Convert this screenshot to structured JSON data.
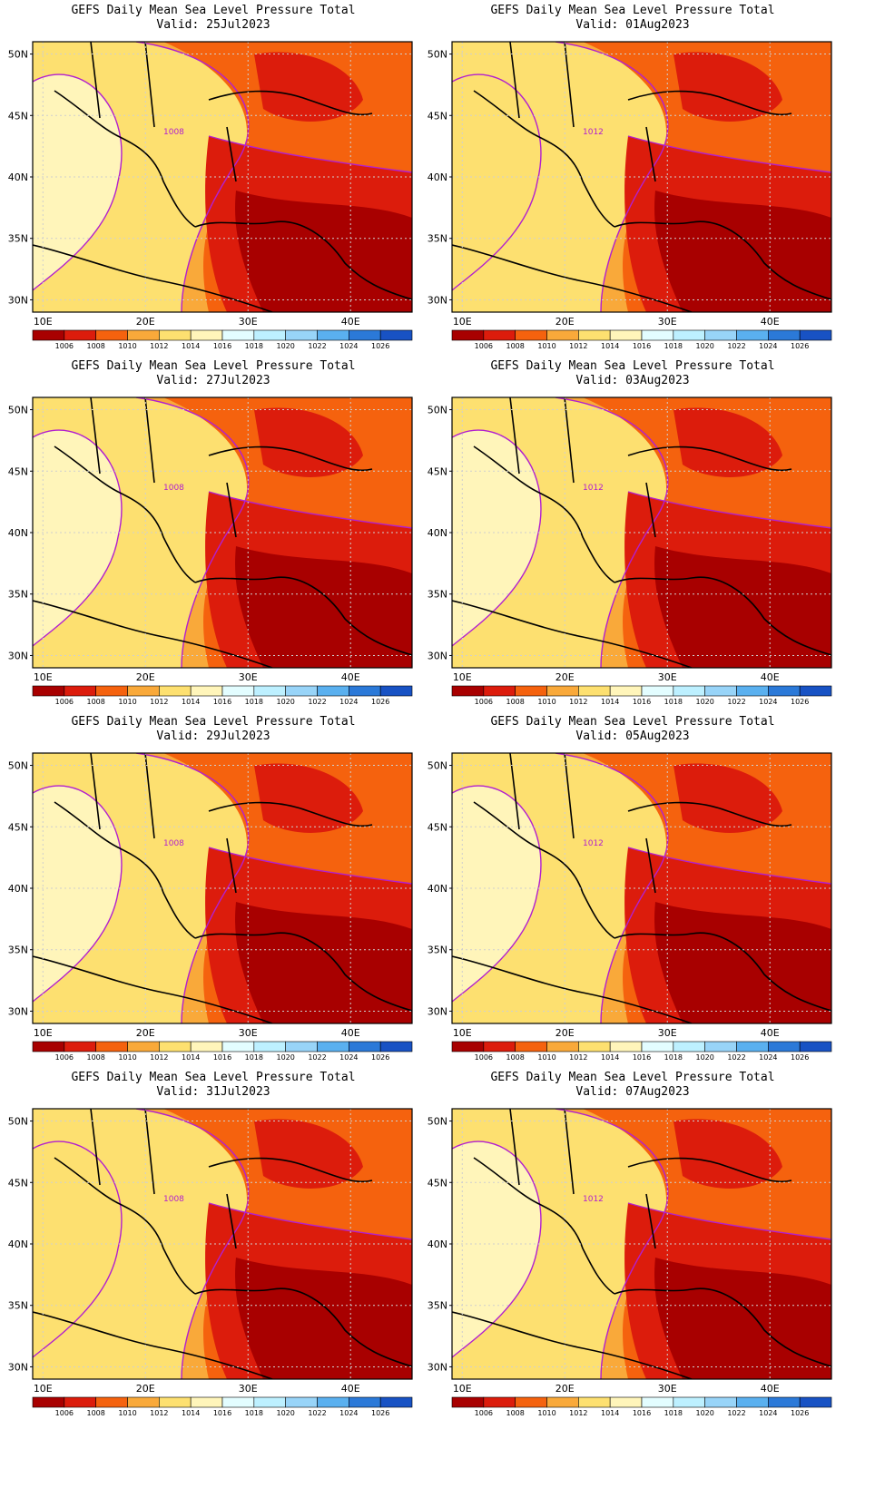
{
  "title_line1": "GEFS Daily Mean Sea Level Pressure Total",
  "valid_prefix": "Valid:",
  "x_ticks": [
    "10E",
    "20E",
    "30E",
    "40E"
  ],
  "y_ticks": [
    "50N",
    "45N",
    "40N",
    "35N",
    "30N"
  ],
  "colorbar_labels": [
    "1006",
    "1008",
    "1010",
    "1012",
    "1014",
    "1016",
    "1018",
    "1020",
    "1022",
    "1024",
    "1026"
  ],
  "colorbar_colors": [
    "#a80000",
    "#dc1c0c",
    "#f5620e",
    "#f9a93a",
    "#fde070",
    "#fff5ba",
    "#e3fdff",
    "#bdf0ff",
    "#98d4f8",
    "#5ab0ef",
    "#2b79d8",
    "#1852c4"
  ],
  "contour_labels": [
    "1008",
    "1012"
  ],
  "panels": [
    {
      "valid": "25Jul2023",
      "palette": "c"
    },
    {
      "valid": "01Aug2023",
      "palette": "b"
    },
    {
      "valid": "27Jul2023",
      "palette": "a"
    },
    {
      "valid": "03Aug2023",
      "palette": "a"
    },
    {
      "valid": "29Jul2023",
      "palette": "a"
    },
    {
      "valid": "05Aug2023",
      "palette": "a"
    },
    {
      "valid": "31Jul2023",
      "palette": "b"
    },
    {
      "valid": "07Aug2023",
      "palette": "a"
    }
  ]
}
